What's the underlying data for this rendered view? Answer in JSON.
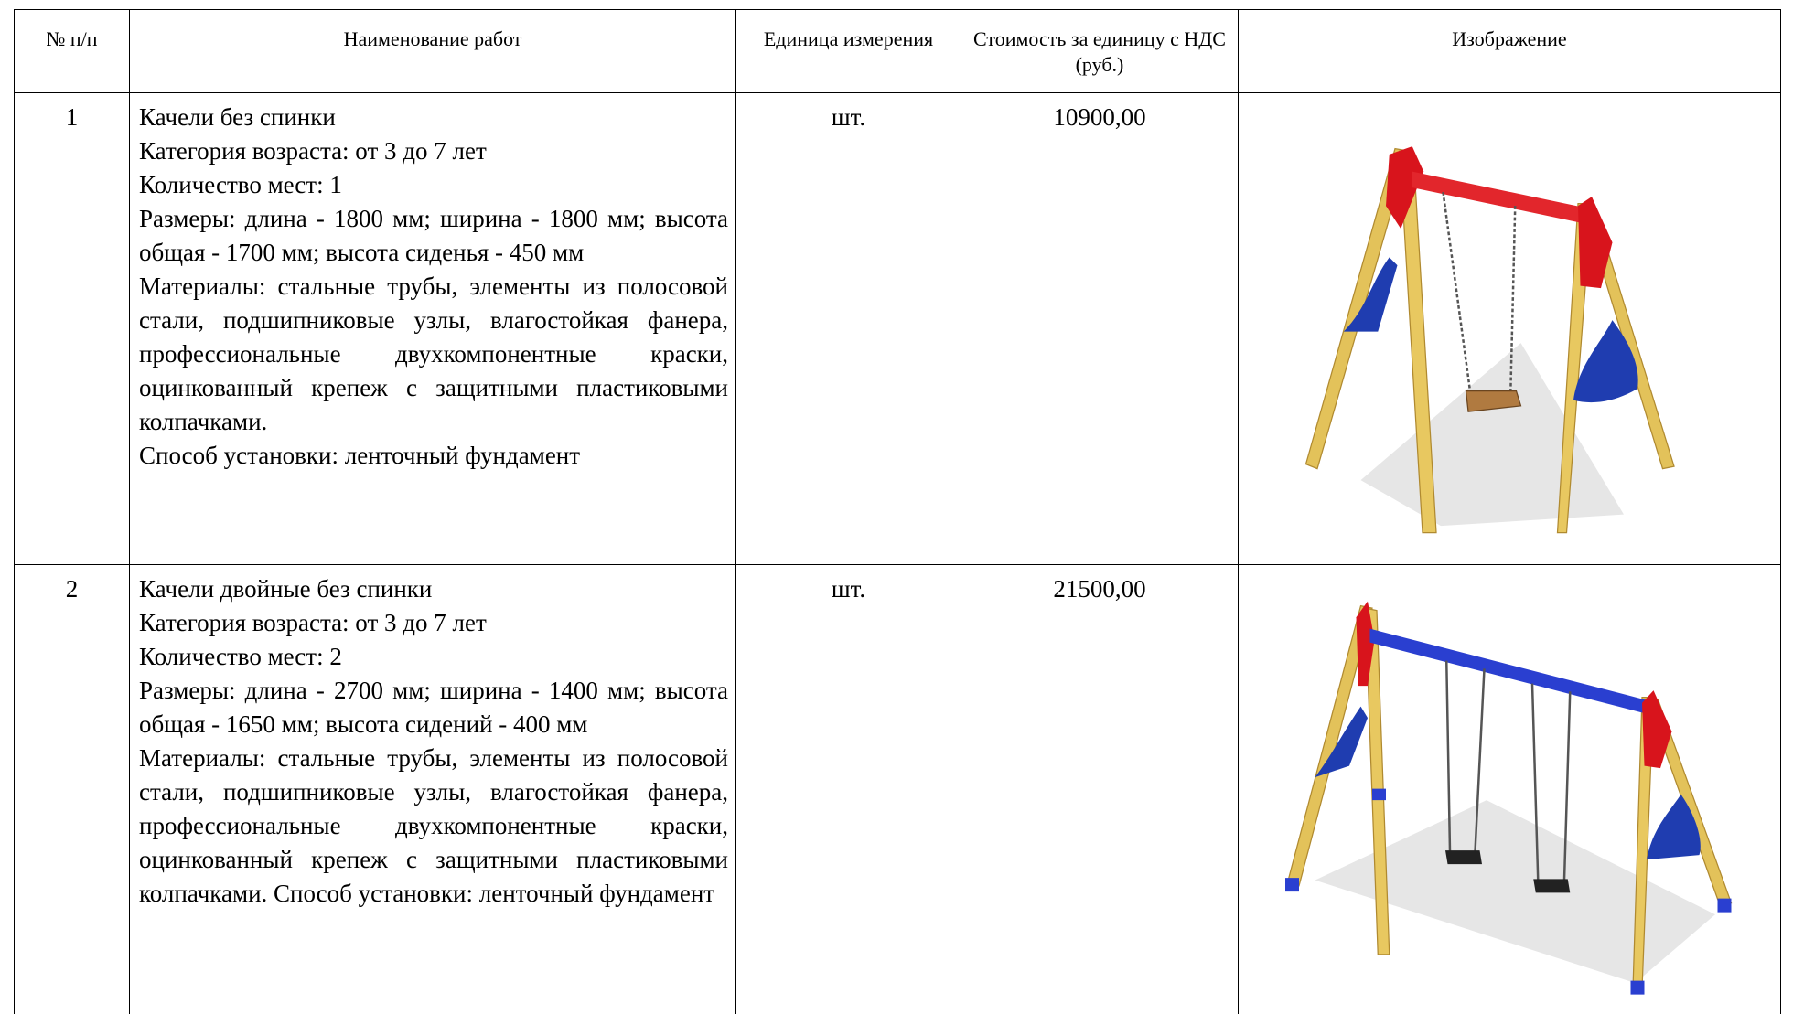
{
  "table": {
    "header": [
      "№ п/п",
      "Наименование работ",
      "Единица измерения",
      "Стоимость за единицу с НДС (руб.)",
      "Изображение"
    ],
    "rows": [
      {
        "number": "1",
        "description": [
          "Качели без спинки",
          "Категория возраста: от 3 до 7 лет",
          "Количество мест: 1",
          "Размеры: длина - 1800 мм; ширина - 1800 мм; высота общая - 1700 мм; высота сиденья - 450 мм",
          "Материалы: стальные трубы, элементы из полосовой стали, подшипниковые узлы, влагостойкая фанера, профессиональные двухкомпонентные краски, оцинкованный крепеж с защитными пластиковыми колпачками.",
          "Способ установки: ленточный фундамент"
        ],
        "unit": "шт.",
        "price": "10900,00"
      },
      {
        "number": "2",
        "description": [
          "Качели двойные без спинки",
          "Категория возраста: от 3 до 7 лет",
          "Количество мест: 2",
          "Размеры: длина - 2700 мм; ширина - 1400 мм; высота общая - 1650 мм; высота сидений - 400 мм",
          "Материалы: стальные трубы, элементы из полосовой стали, подшипниковые узлы, влагостойкая фанера, профессиональные двухкомпонентные краски, оцинкованный крепеж с защитными пластиковыми колпачками. Способ установки: ленточный фундамент"
        ],
        "unit": "шт.",
        "price": "21500,00"
      }
    ]
  }
}
